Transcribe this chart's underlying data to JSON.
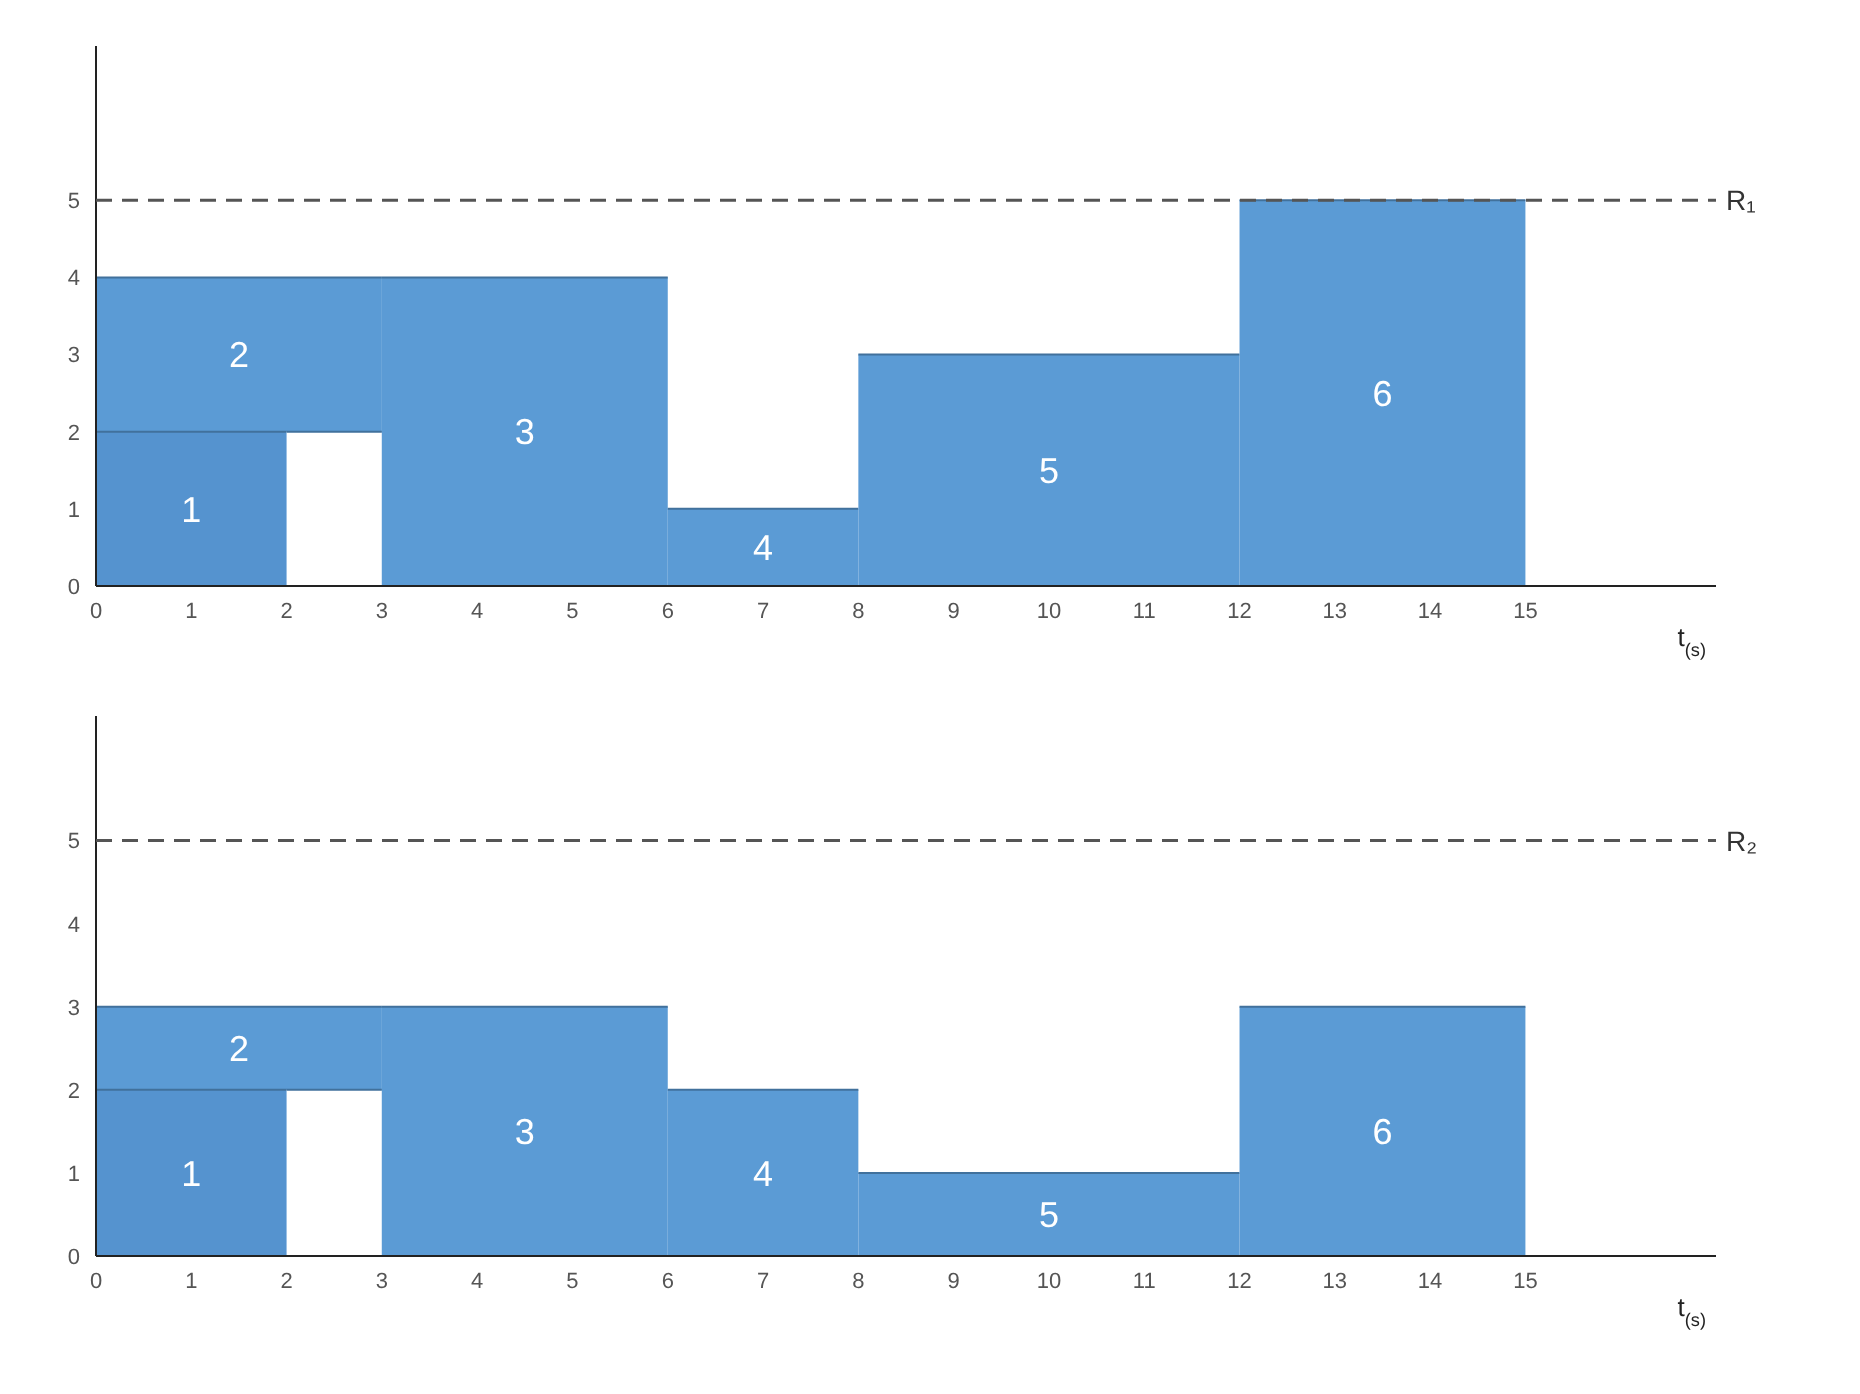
{
  "chart_data": [
    {
      "type": "area",
      "xlabel": "t$_{(s)}$",
      "xlim": [
        0,
        17
      ],
      "xticks": [
        0,
        1,
        2,
        3,
        4,
        5,
        6,
        7,
        8,
        9,
        10,
        11,
        12,
        13,
        14,
        15
      ],
      "ylim": [
        0,
        7
      ],
      "yticks": [
        0,
        1,
        2,
        3,
        4,
        5
      ],
      "grid": false,
      "ref_lines": [
        {
          "axis": "y",
          "value": 5,
          "label": "R₁",
          "line_style": "dashed",
          "color": "#555555"
        }
      ],
      "series": [
        {
          "name": "2",
          "color": "#5b9bd5",
          "x": [
            0,
            3
          ],
          "values": [
            4,
            4
          ]
        },
        {
          "name": "1",
          "color": "#5593cf",
          "x": [
            0,
            2
          ],
          "values": [
            2,
            2
          ]
        },
        {
          "color": "#ffffff",
          "x": [
            2,
            3
          ],
          "values": [
            2,
            2
          ]
        },
        {
          "name": "3",
          "color": "#5b9bd5",
          "x": [
            3,
            6
          ],
          "values": [
            4,
            4
          ]
        },
        {
          "name": "4",
          "color": "#5b9bd5",
          "x": [
            6,
            8
          ],
          "values": [
            1,
            1
          ]
        },
        {
          "name": "5",
          "color": "#5b9bd5",
          "x": [
            8,
            12
          ],
          "values": [
            3,
            3
          ]
        },
        {
          "name": "6",
          "color": "#5b9bd5",
          "x": [
            12,
            15
          ],
          "values": [
            5,
            5
          ]
        }
      ]
    },
    {
      "type": "area",
      "xlabel": "t$_{(s)}$",
      "xlim": [
        0,
        17
      ],
      "xticks": [
        0,
        1,
        2,
        3,
        4,
        5,
        6,
        7,
        8,
        9,
        10,
        11,
        12,
        13,
        14,
        15
      ],
      "ylim": [
        0,
        6.5
      ],
      "yticks": [
        0,
        1,
        2,
        3,
        4,
        5
      ],
      "grid": false,
      "ref_lines": [
        {
          "axis": "y",
          "value": 5,
          "label": "R₂",
          "line_style": "dashed",
          "color": "#555555"
        }
      ],
      "series": [
        {
          "name": "2",
          "color": "#5b9bd5",
          "x": [
            0,
            3
          ],
          "values": [
            3,
            3
          ]
        },
        {
          "name": "1",
          "color": "#5593cf",
          "x": [
            0,
            2
          ],
          "values": [
            2,
            2
          ]
        },
        {
          "color": "#ffffff",
          "x": [
            2,
            3
          ],
          "values": [
            2,
            2
          ]
        },
        {
          "name": "3",
          "color": "#5b9bd5",
          "x": [
            3,
            6
          ],
          "values": [
            3,
            3
          ]
        },
        {
          "name": "4",
          "color": "#5b9bd5",
          "x": [
            6,
            8
          ],
          "values": [
            2,
            2
          ]
        },
        {
          "name": "5",
          "color": "#5b9bd5",
          "x": [
            8,
            12
          ],
          "values": [
            1,
            1
          ]
        },
        {
          "name": "6",
          "color": "#5b9bd5",
          "x": [
            12,
            15
          ],
          "values": [
            3,
            3
          ]
        }
      ]
    }
  ]
}
